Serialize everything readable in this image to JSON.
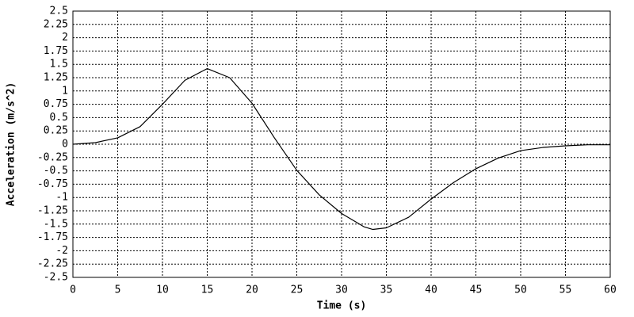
{
  "chart_data": {
    "type": "line",
    "xlabel": "Time (s)",
    "ylabel": "Acceleration (m/s^2)",
    "x": [
      0,
      2.5,
      5,
      7.5,
      10,
      12.5,
      15,
      17.5,
      20,
      22.5,
      25,
      27.5,
      30,
      32.5,
      33.5,
      35,
      37.5,
      40,
      42.5,
      45,
      47.5,
      50,
      52.5,
      55,
      57.5,
      60
    ],
    "series": [
      {
        "name": "Acceleration",
        "color": "#000000",
        "values": [
          0,
          0.03,
          0.12,
          0.33,
          0.75,
          1.2,
          1.42,
          1.25,
          0.77,
          0.12,
          -0.49,
          -0.95,
          -1.3,
          -1.55,
          -1.6,
          -1.57,
          -1.37,
          -1.03,
          -0.72,
          -0.46,
          -0.26,
          -0.12,
          -0.06,
          -0.03,
          -0.01,
          -0.01
        ]
      }
    ],
    "xlim": [
      0,
      60
    ],
    "xticks": [
      0,
      5,
      10,
      15,
      20,
      25,
      30,
      35,
      40,
      45,
      50,
      55,
      60
    ],
    "ylim": [
      -2.5,
      2.5
    ],
    "yticks": [
      -2.5,
      -2.25,
      -2,
      -1.75,
      -1.5,
      -1.25,
      -1,
      -0.75,
      -0.5,
      -0.25,
      0,
      0.25,
      0.5,
      0.75,
      1,
      1.25,
      1.5,
      1.75,
      2,
      2.25,
      2.5
    ],
    "grid": true
  }
}
